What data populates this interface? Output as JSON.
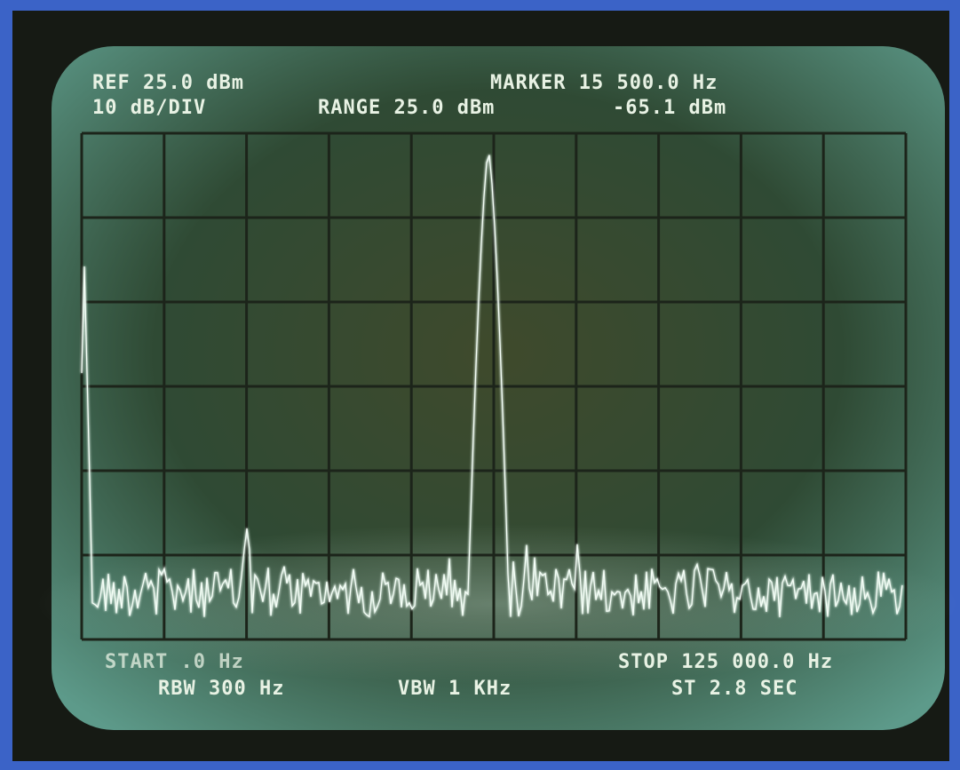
{
  "screen": {
    "top_left": [
      "REF 25.0 dBm",
      "10 dB/DIV"
    ],
    "range": "RANGE 25.0 dBm",
    "marker": [
      "MARKER 15 500.0 Hz",
      "-65.1 dBm"
    ],
    "bottom_left": [
      "START .0 Hz",
      "RBW 300 Hz"
    ],
    "vbw": "VBW 1 KHz",
    "bottom_right": [
      "STOP 125 000.0 Hz",
      "ST 2.8 SEC"
    ]
  }
}
